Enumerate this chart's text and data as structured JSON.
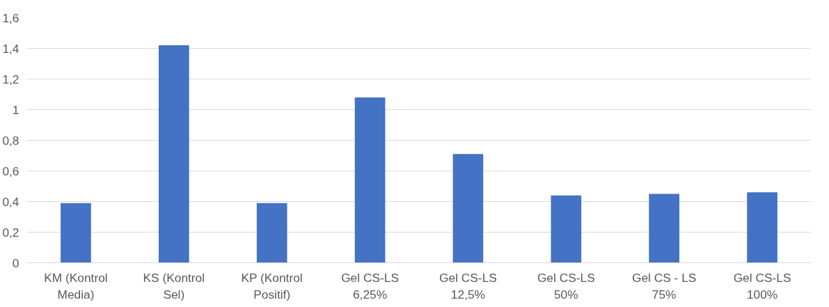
{
  "chart_data": {
    "type": "bar",
    "categories": [
      "KM (Kontrol\nMedia)",
      "KS (Kontrol\nSel)",
      "KP (Kontrol\nPositif)",
      "Gel CS-LS\n6,25%",
      "Gel CS-LS\n12,5%",
      "Gel CS-LS\n50%",
      "Gel CS - LS\n75%",
      "Gel CS-LS\n100%"
    ],
    "values": [
      0.39,
      1.42,
      0.39,
      1.08,
      0.71,
      0.44,
      0.45,
      0.46
    ],
    "color": "#4472c4",
    "ylim": [
      0,
      1.6
    ],
    "yticks": [
      {
        "value": 0,
        "label": "0"
      },
      {
        "value": 0.2,
        "label": "0,2"
      },
      {
        "value": 0.4,
        "label": "0,4"
      },
      {
        "value": 0.6,
        "label": "0,6"
      },
      {
        "value": 0.8,
        "label": "0,8"
      },
      {
        "value": 1,
        "label": "1"
      },
      {
        "value": 1.2,
        "label": "1,2"
      },
      {
        "value": 1.4,
        "label": "1,4"
      },
      {
        "value": 1.6,
        "label": "1,6"
      }
    ],
    "grid": "y"
  }
}
